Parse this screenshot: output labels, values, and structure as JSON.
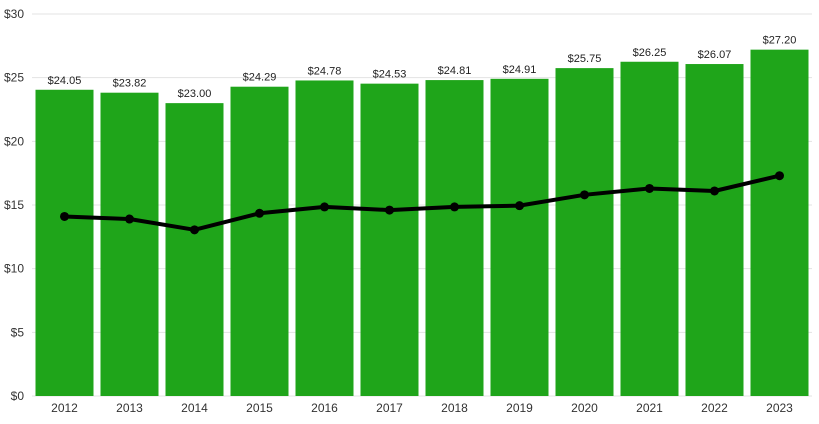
{
  "chart_data": {
    "type": "bar",
    "categories": [
      "2012",
      "2013",
      "2014",
      "2015",
      "2016",
      "2017",
      "2018",
      "2019",
      "2020",
      "2021",
      "2022",
      "2023"
    ],
    "values": [
      24.05,
      23.82,
      23.0,
      24.29,
      24.78,
      24.53,
      24.81,
      24.91,
      25.75,
      26.25,
      26.07,
      27.2
    ],
    "value_labels": [
      "$24.05",
      "$23.82",
      "$23.00",
      "$24.29",
      "$24.78",
      "$24.53",
      "$24.81",
      "$24.91",
      "$25.75",
      "$26.25",
      "$26.07",
      "$27.20"
    ],
    "line_values": [
      14.1,
      13.9,
      13.05,
      14.35,
      14.85,
      14.6,
      14.85,
      14.95,
      15.8,
      16.3,
      16.1,
      17.3
    ],
    "ylim": [
      0,
      30
    ],
    "yticks": [
      0,
      5,
      10,
      15,
      20,
      25,
      30
    ],
    "ytick_labels": [
      "$0",
      "$5",
      "$10",
      "$15",
      "$20",
      "$25",
      "$30"
    ],
    "title": "",
    "xlabel": "",
    "ylabel": "",
    "grid": true,
    "legend": "none",
    "colors": {
      "bar": "#1fa51a",
      "line": "#000000",
      "grid": "#e3e3e3"
    }
  }
}
